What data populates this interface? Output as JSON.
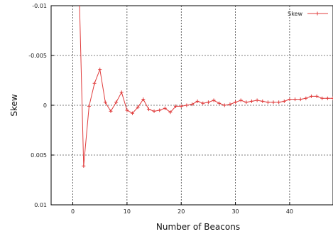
{
  "chart_data": {
    "type": "line",
    "title": "",
    "xlabel": "Number of Beacons",
    "ylabel": "Skew",
    "xlim": [
      -4,
      48
    ],
    "ylim": [
      -0.01,
      0.01
    ],
    "y_inverted": true,
    "grid": true,
    "legend_position": "top-right",
    "x_ticks": [
      0,
      10,
      20,
      30,
      40
    ],
    "x_tick_labels": [
      "0",
      "10",
      "20",
      "30",
      "40"
    ],
    "y_ticks": [
      -0.01,
      -0.005,
      0,
      0.005,
      0.01
    ],
    "y_tick_labels": [
      "-0.01",
      "-0.005",
      "0",
      "0.005",
      "0.01"
    ],
    "series": [
      {
        "name": "Skew",
        "color": "#e03c3c",
        "x": [
          1,
          2,
          3,
          4,
          5,
          6,
          7,
          8,
          9,
          10,
          11,
          12,
          13,
          14,
          15,
          16,
          17,
          18,
          19,
          20,
          21,
          22,
          23,
          24,
          25,
          26,
          27,
          28,
          29,
          30,
          31,
          32,
          33,
          34,
          35,
          36,
          37,
          38,
          39,
          40,
          41,
          42,
          43,
          44,
          45,
          46,
          47,
          48
        ],
        "y": [
          -0.0153,
          0.0061,
          0.0001,
          -0.0022,
          -0.0036,
          -0.0003,
          0.0006,
          -0.0003,
          -0.0013,
          0.0005,
          0.0008,
          0.0002,
          -0.0006,
          0.0004,
          0.0006,
          0.0005,
          0.0003,
          0.0007,
          0.0001,
          0.0001,
          0.0,
          -0.0001,
          -0.0004,
          -0.0002,
          -0.0003,
          -0.0005,
          -0.0002,
          0.0,
          -0.0001,
          -0.0003,
          -0.0005,
          -0.0003,
          -0.0004,
          -0.0005,
          -0.0004,
          -0.0003,
          -0.0003,
          -0.0003,
          -0.0004,
          -0.0006,
          -0.0006,
          -0.0006,
          -0.0007,
          -0.0009,
          -0.0009,
          -0.0007,
          -0.0007,
          -0.0007
        ]
      }
    ]
  }
}
